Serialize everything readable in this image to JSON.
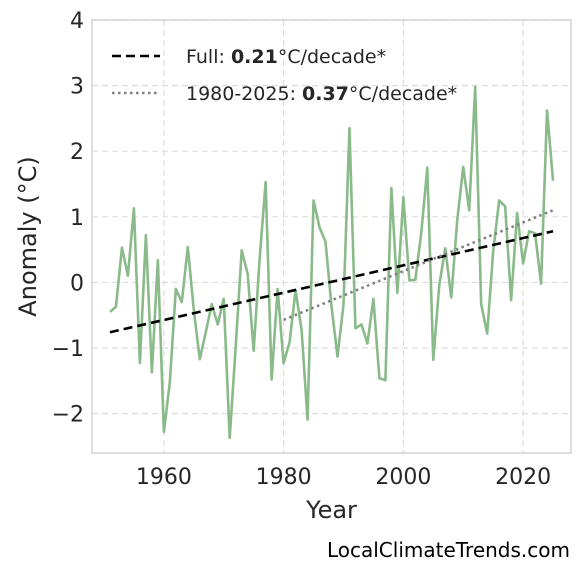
{
  "chart_data": {
    "type": "line",
    "xlabel": "Year",
    "ylabel": "Anomaly (°C)",
    "xlim": [
      1948,
      2028
    ],
    "ylim": [
      -2.6,
      4.0
    ],
    "xticks": [
      1960,
      1980,
      2000,
      2020
    ],
    "yticks": [
      -2,
      -1,
      0,
      1,
      2,
      3,
      4
    ],
    "ytick_labels": [
      "−2",
      "−1",
      "0",
      "1",
      "2",
      "3",
      "4"
    ],
    "grid": true,
    "legend_position": "top-left",
    "series": [
      {
        "color": "#8aba8a",
        "x": [
          1951,
          1952,
          1953,
          1954,
          1955,
          1956,
          1957,
          1958,
          1959,
          1960,
          1961,
          1962,
          1963,
          1964,
          1965,
          1966,
          1967,
          1968,
          1969,
          1970,
          1971,
          1972,
          1973,
          1974,
          1975,
          1976,
          1977,
          1978,
          1979,
          1980,
          1981,
          1982,
          1983,
          1984,
          1985,
          1986,
          1987,
          1988,
          1989,
          1990,
          1991,
          1992,
          1993,
          1994,
          1995,
          1996,
          1997,
          1998,
          1999,
          2000,
          2001,
          2002,
          2003,
          2004,
          2005,
          2006,
          2007,
          2008,
          2009,
          2010,
          2011,
          2012,
          2013,
          2014,
          2015,
          2016,
          2017,
          2018,
          2019,
          2020,
          2021,
          2022,
          2023,
          2024,
          2025
        ],
        "y": [
          -0.45,
          -0.37,
          0.53,
          0.1,
          1.13,
          -1.23,
          0.72,
          -1.37,
          0.34,
          -2.28,
          -1.52,
          -0.1,
          -0.3,
          0.54,
          -0.42,
          -1.17,
          -0.76,
          -0.33,
          -0.64,
          -0.25,
          -2.37,
          -0.98,
          0.49,
          0.13,
          -1.04,
          0.36,
          1.53,
          -1.48,
          -0.1,
          -1.23,
          -0.91,
          -0.12,
          -0.72,
          -2.09,
          1.25,
          0.84,
          0.62,
          -0.36,
          -1.13,
          -0.34,
          2.35,
          -0.7,
          -0.64,
          -0.93,
          -0.25,
          -1.46,
          -1.49,
          1.44,
          -0.16,
          1.3,
          0.03,
          0.04,
          0.76,
          1.75,
          -1.18,
          -0.04,
          0.52,
          -0.23,
          0.95,
          1.76,
          1.1,
          2.98,
          -0.33,
          -0.78,
          0.47,
          1.25,
          1.16,
          -0.27,
          1.06,
          0.29,
          0.78,
          0.75,
          -0.02,
          2.62,
          1.55
        ]
      },
      {
        "color": "#000000",
        "style": "dashed",
        "x": [
          1951,
          2025
        ],
        "y": [
          -0.76,
          0.78
        ]
      },
      {
        "color": "#808080",
        "style": "dotted",
        "x": [
          1980,
          2025
        ],
        "y": [
          -0.57,
          1.1
        ]
      }
    ],
    "legend": [
      {
        "prefix": "Full: ",
        "value": "0.21",
        "suffix": "°C/decade*"
      },
      {
        "prefix": "1980-2025: ",
        "value": "0.37",
        "suffix": "°C/decade*"
      }
    ]
  },
  "watermark": "LocalClimateTrends.com"
}
